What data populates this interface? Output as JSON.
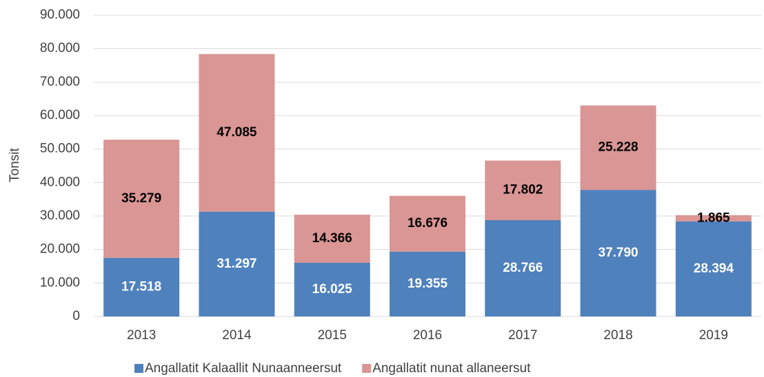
{
  "chart_data": {
    "type": "stacked_bar",
    "y_label": "Tonsit",
    "categories": [
      "2013",
      "2014",
      "2015",
      "2016",
      "2017",
      "2018",
      "2019"
    ],
    "series": [
      {
        "name": "Angallatit Kalaallit Nunaanneersut",
        "color": "#4f81bd",
        "values": [
          17518,
          31297,
          16025,
          19355,
          28766,
          37790,
          28394
        ],
        "value_labels": [
          "17.518",
          "31.297",
          "16.025",
          "19.355",
          "28.766",
          "37.790",
          "28.394"
        ]
      },
      {
        "name": "Angallatit nunat allaneersut",
        "color": "#d99694",
        "values": [
          35279,
          47085,
          14366,
          16676,
          17802,
          25228,
          1865
        ],
        "value_labels": [
          "35.279",
          "47.085",
          "14.366",
          "16.676",
          "17.802",
          "25.228",
          "1.865"
        ]
      }
    ],
    "ylim": [
      0,
      90000
    ],
    "yticks": [
      {
        "value": 0,
        "label": "0"
      },
      {
        "value": 10000,
        "label": "10.000"
      },
      {
        "value": 20000,
        "label": "20.000"
      },
      {
        "value": 30000,
        "label": "30.000"
      },
      {
        "value": 40000,
        "label": "40.000"
      },
      {
        "value": 50000,
        "label": "50.000"
      },
      {
        "value": 60000,
        "label": "60.000"
      },
      {
        "value": 70000,
        "label": "70.000"
      },
      {
        "value": 80000,
        "label": "80.000"
      },
      {
        "value": 90000,
        "label": "90.000"
      }
    ],
    "grid": true,
    "legend": "bottom"
  }
}
